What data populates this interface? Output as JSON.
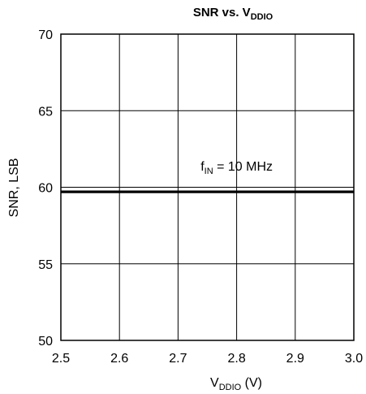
{
  "chart_data": {
    "type": "line",
    "title": {
      "main": "SNR vs. V",
      "sub": "DDIO"
    },
    "xlabel": {
      "main": "V",
      "sub": "DDIO",
      "suffix": " (V)"
    },
    "ylabel": "SNR, LSB",
    "xlim": [
      2.5,
      3.0
    ],
    "ylim": [
      50,
      70
    ],
    "x_ticks": [
      2.5,
      2.6,
      2.7,
      2.8,
      2.9,
      3.0
    ],
    "x_tick_labels": [
      "2.5",
      "2.6",
      "2.7",
      "2.8",
      "2.9",
      "3.0"
    ],
    "y_ticks": [
      50,
      55,
      60,
      65,
      70
    ],
    "y_tick_labels": [
      "50",
      "55",
      "60",
      "65",
      "70"
    ],
    "grid": true,
    "series": [
      {
        "x": [
          2.5,
          2.6,
          2.7,
          2.8,
          2.9,
          3.0
        ],
        "y": [
          59.7,
          59.7,
          59.7,
          59.7,
          59.7,
          59.7
        ]
      }
    ],
    "annotation": {
      "main": "f",
      "sub": "IN",
      "suffix": " = 10 MHz",
      "x": 2.8,
      "y": 61.1
    }
  }
}
